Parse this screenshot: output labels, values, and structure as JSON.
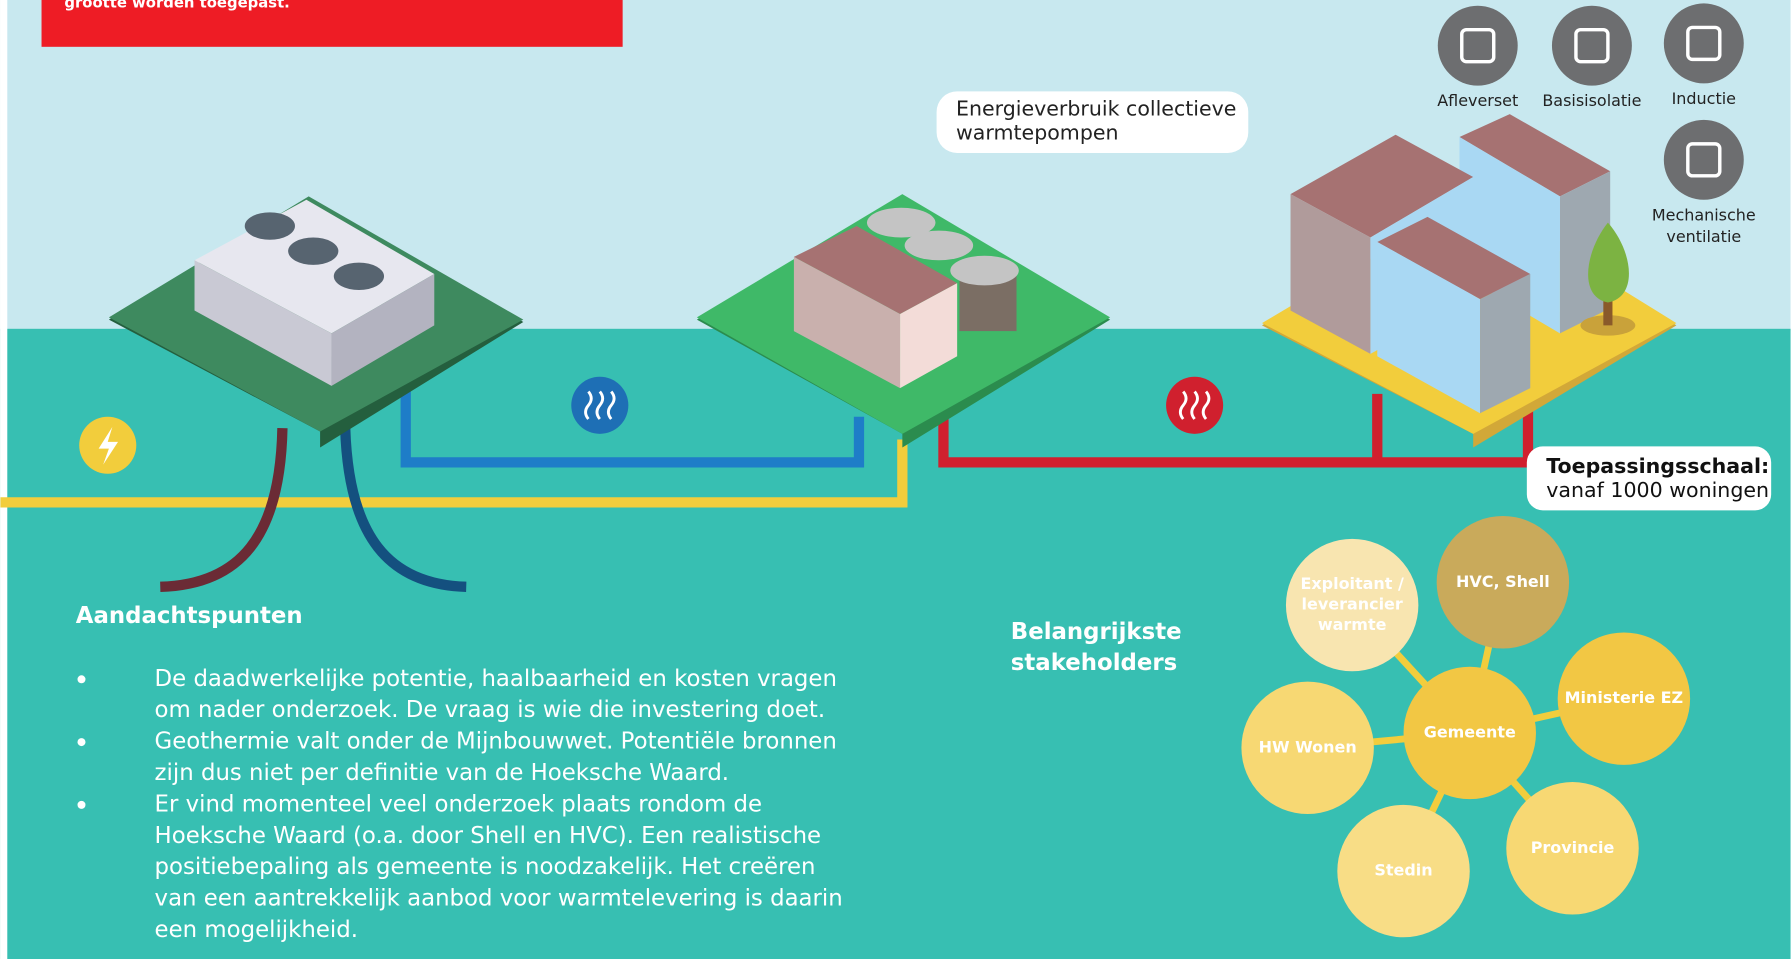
{
  "red_note": "grootte worden toegepast.",
  "callout": {
    "lines": [
      "Energieverbruik collectieve",
      "warmtepompen"
    ]
  },
  "measures": [
    {
      "lines": [
        "Afleverset"
      ]
    },
    {
      "lines": [
        "Basisisolatie"
      ]
    },
    {
      "lines": [
        "Inductie"
      ]
    },
    {
      "lines": [
        "Mechanische",
        "ventilatie"
      ]
    }
  ],
  "scale": {
    "label": "Toepassingsschaal:",
    "value": "vanaf 1000 woningen"
  },
  "attention": {
    "title": "Aandachtspunten",
    "bullets": [
      [
        "De daadwerkelijke potentie, haalbaarheid en kosten vragen",
        "om nader onderzoek. De vraag is wie die investering doet."
      ],
      [
        "Geothermie valt onder de Mijnbouwwet. Potentiële bronnen",
        "zijn dus niet per definitie van de Hoeksche Waard."
      ],
      [
        "Er vind momenteel veel onderzoek plaats rondom de",
        "Hoeksche Waard (o.a. door Shell en HVC). Een realistische",
        "positiebepaling als gemeente is noodzakelijk. Het creëren",
        "van een aantrekkelijk aanbod voor warmtelevering is daarin",
        "een mogelijkheid."
      ]
    ]
  },
  "stakeholders": {
    "title": [
      "Belangrijkste",
      "stakeholders"
    ],
    "items": [
      {
        "lines": [
          "Exploitant /",
          "leverancier",
          "warmte"
        ]
      },
      {
        "lines": [
          "HVC, Shell"
        ]
      },
      {
        "lines": [
          "Ministerie EZ"
        ]
      },
      {
        "lines": [
          "Gemeente"
        ]
      },
      {
        "lines": [
          "HW Wonen"
        ]
      },
      {
        "lines": [
          "Provincie"
        ]
      },
      {
        "lines": [
          "Stedin"
        ]
      }
    ]
  }
}
